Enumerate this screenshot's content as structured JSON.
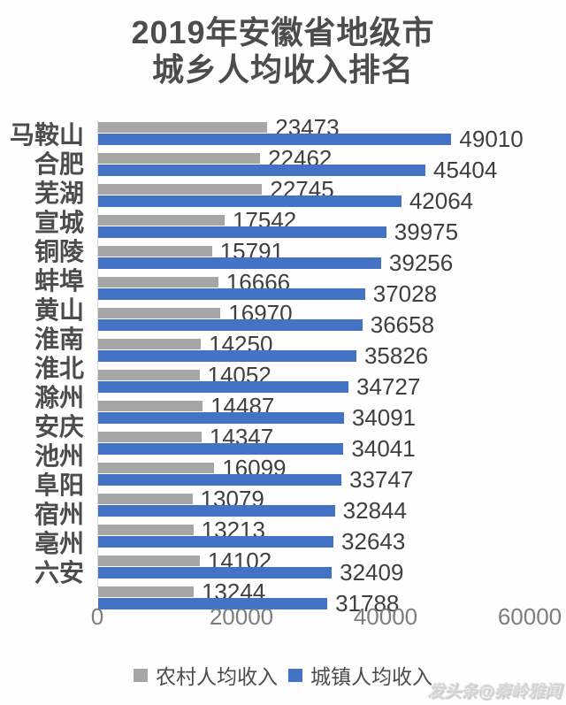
{
  "title": {
    "line1": "2019年安徽省地级市",
    "line2": "城乡人均收入排名"
  },
  "chart_data": {
    "type": "bar",
    "orientation": "horizontal",
    "title": "2019年安徽省地级市城乡人均收入排名",
    "categories": [
      "马鞍山",
      "合肥",
      "芜湖",
      "宣城",
      "铜陵",
      "蚌埠",
      "黄山",
      "淮南",
      "淮北",
      "滁州",
      "安庆",
      "池州",
      "阜阳",
      "宿州",
      "亳州",
      "六安"
    ],
    "series": [
      {
        "name": "农村人均收入",
        "color": "#a6a6a6",
        "values": [
          23473,
          22462,
          22745,
          17542,
          15791,
          16666,
          16970,
          14250,
          14052,
          14487,
          14347,
          16099,
          13079,
          13213,
          14102,
          13244
        ]
      },
      {
        "name": "城镇人均收入",
        "color": "#4472c4",
        "values": [
          49010,
          45404,
          42064,
          39975,
          39256,
          37028,
          36658,
          35826,
          34727,
          34091,
          34041,
          33747,
          32844,
          32643,
          32409,
          31788
        ]
      }
    ],
    "xlim": [
      0,
      60000
    ],
    "x_ticks": [
      0,
      20000,
      40000,
      60000
    ],
    "grid": false,
    "value_labels": true,
    "legend_position": "bottom"
  },
  "colors": {
    "rural_bar": "#a6a6a6",
    "urban_bar": "#4472c4",
    "title_text": "#4c4c4c",
    "value_text": "#3f3f3f",
    "axis_text": "#7d7d7d",
    "axis_line": "#d9d9d9"
  },
  "watermark": "发头条@秦岭雅闻"
}
